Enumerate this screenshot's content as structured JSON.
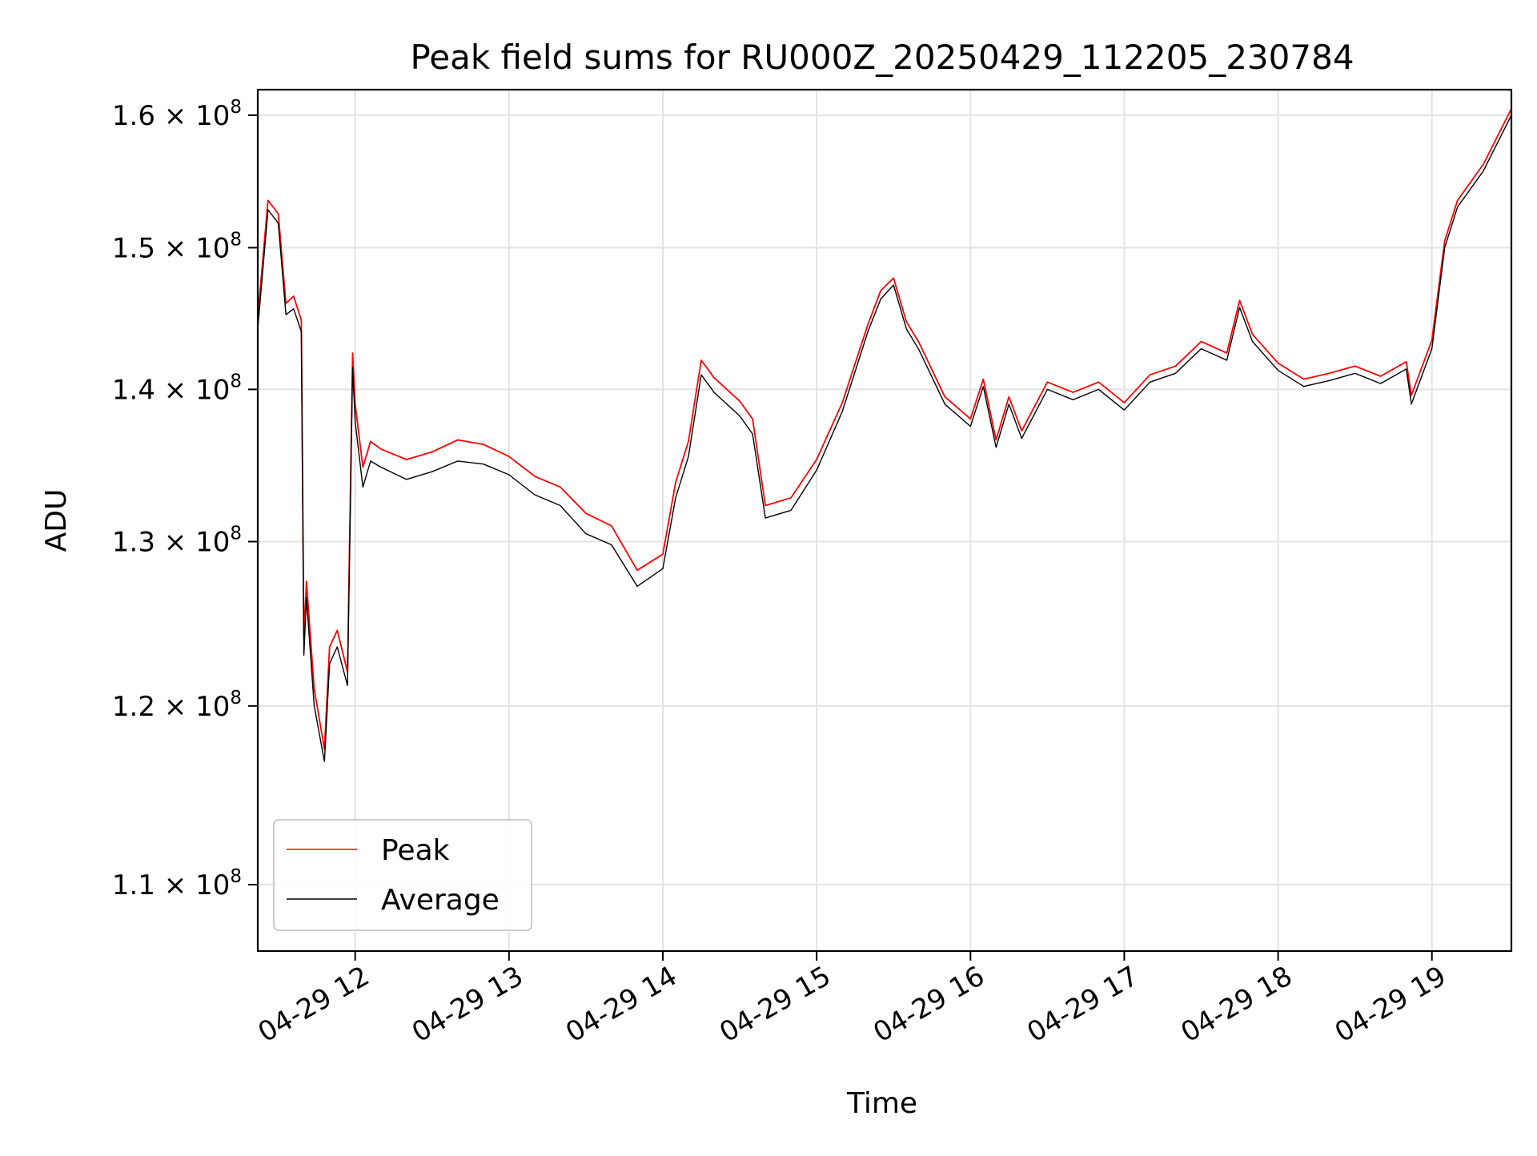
{
  "chart_data": {
    "type": "line",
    "title": "Peak field sums for RU000Z_20250429_112205_230784",
    "xlabel": "Time",
    "ylabel": "ADU",
    "y_scale": "log",
    "x_range": [
      "2025-04-29 11:22",
      "2025-04-29 19:31"
    ],
    "ylim": [
      106500000,
      162000000
    ],
    "grid": true,
    "legend_position": "lower left",
    "x_ticks": [
      {
        "t": "2025-04-29 12:00",
        "label": "04-29 12"
      },
      {
        "t": "2025-04-29 13:00",
        "label": "04-29 13"
      },
      {
        "t": "2025-04-29 14:00",
        "label": "04-29 14"
      },
      {
        "t": "2025-04-29 15:00",
        "label": "04-29 15"
      },
      {
        "t": "2025-04-29 16:00",
        "label": "04-29 16"
      },
      {
        "t": "2025-04-29 17:00",
        "label": "04-29 17"
      },
      {
        "t": "2025-04-29 18:00",
        "label": "04-29 18"
      },
      {
        "t": "2025-04-29 19:00",
        "label": "04-29 19"
      }
    ],
    "y_ticks": [
      {
        "value": 110000000,
        "mantissa": "1.1",
        "exponent": "8"
      },
      {
        "value": 120000000,
        "mantissa": "1.2",
        "exponent": "8"
      },
      {
        "value": 130000000,
        "mantissa": "1.3",
        "exponent": "8"
      },
      {
        "value": 140000000,
        "mantissa": "1.4",
        "exponent": "8"
      },
      {
        "value": 150000000,
        "mantissa": "1.5",
        "exponent": "8"
      },
      {
        "value": 160000000,
        "mantissa": "1.6",
        "exponent": "8"
      }
    ],
    "series": [
      {
        "name": "Peak",
        "color": "#ff0000",
        "x": [
          "2025-04-29 11:22",
          "2025-04-29 11:26",
          "2025-04-29 11:30",
          "2025-04-29 11:33",
          "2025-04-29 11:36",
          "2025-04-29 11:39",
          "2025-04-29 11:40",
          "2025-04-29 11:41",
          "2025-04-29 11:44",
          "2025-04-29 11:48",
          "2025-04-29 11:50",
          "2025-04-29 11:53",
          "2025-04-29 11:57",
          "2025-04-29 11:59",
          "2025-04-29 12:00",
          "2025-04-29 12:03",
          "2025-04-29 12:06",
          "2025-04-29 12:10",
          "2025-04-29 12:20",
          "2025-04-29 12:30",
          "2025-04-29 12:40",
          "2025-04-29 12:50",
          "2025-04-29 13:00",
          "2025-04-29 13:10",
          "2025-04-29 13:20",
          "2025-04-29 13:30",
          "2025-04-29 13:40",
          "2025-04-29 13:50",
          "2025-04-29 14:00",
          "2025-04-29 14:05",
          "2025-04-29 14:10",
          "2025-04-29 14:15",
          "2025-04-29 14:20",
          "2025-04-29 14:30",
          "2025-04-29 14:35",
          "2025-04-29 14:40",
          "2025-04-29 14:50",
          "2025-04-29 15:00",
          "2025-04-29 15:10",
          "2025-04-29 15:20",
          "2025-04-29 15:25",
          "2025-04-29 15:30",
          "2025-04-29 15:35",
          "2025-04-29 15:40",
          "2025-04-29 15:50",
          "2025-04-29 16:00",
          "2025-04-29 16:05",
          "2025-04-29 16:10",
          "2025-04-29 16:15",
          "2025-04-29 16:20",
          "2025-04-29 16:30",
          "2025-04-29 16:40",
          "2025-04-29 16:50",
          "2025-04-29 17:00",
          "2025-04-29 17:10",
          "2025-04-29 17:20",
          "2025-04-29 17:30",
          "2025-04-29 17:40",
          "2025-04-29 17:45",
          "2025-04-29 17:50",
          "2025-04-29 18:00",
          "2025-04-29 18:10",
          "2025-04-29 18:20",
          "2025-04-29 18:30",
          "2025-04-29 18:40",
          "2025-04-29 18:50",
          "2025-04-29 18:52",
          "2025-04-29 19:00",
          "2025-04-29 19:05",
          "2025-04-29 19:10",
          "2025-04-29 19:20",
          "2025-04-29 19:31"
        ],
        "y": [
          145000000,
          153500000,
          152500000,
          146000000,
          146500000,
          144800000,
          124000000,
          127500000,
          121000000,
          117500000,
          123500000,
          124500000,
          122000000,
          142500000,
          139000000,
          134800000,
          136500000,
          136000000,
          135300000,
          135800000,
          136600000,
          136300000,
          135500000,
          134200000,
          133500000,
          131800000,
          131000000,
          128200000,
          129200000,
          133800000,
          136500000,
          142000000,
          140800000,
          139200000,
          138000000,
          132300000,
          132800000,
          135300000,
          139100000,
          144500000,
          146900000,
          147800000,
          144700000,
          143200000,
          139500000,
          138000000,
          140700000,
          136600000,
          139500000,
          137200000,
          140500000,
          139800000,
          140500000,
          139100000,
          141000000,
          141600000,
          143300000,
          142500000,
          146200000,
          143800000,
          141800000,
          140700000,
          141100000,
          141600000,
          140900000,
          141900000,
          139600000,
          143400000,
          150500000,
          153500000,
          156200000,
          160500000
        ]
      },
      {
        "name": "Average",
        "color": "#000000",
        "x": [
          "2025-04-29 11:22",
          "2025-04-29 11:26",
          "2025-04-29 11:30",
          "2025-04-29 11:33",
          "2025-04-29 11:36",
          "2025-04-29 11:39",
          "2025-04-29 11:40",
          "2025-04-29 11:41",
          "2025-04-29 11:44",
          "2025-04-29 11:48",
          "2025-04-29 11:50",
          "2025-04-29 11:53",
          "2025-04-29 11:57",
          "2025-04-29 11:59",
          "2025-04-29 12:00",
          "2025-04-29 12:03",
          "2025-04-29 12:06",
          "2025-04-29 12:10",
          "2025-04-29 12:20",
          "2025-04-29 12:30",
          "2025-04-29 12:40",
          "2025-04-29 12:50",
          "2025-04-29 13:00",
          "2025-04-29 13:10",
          "2025-04-29 13:20",
          "2025-04-29 13:30",
          "2025-04-29 13:40",
          "2025-04-29 13:50",
          "2025-04-29 14:00",
          "2025-04-29 14:05",
          "2025-04-29 14:10",
          "2025-04-29 14:15",
          "2025-04-29 14:20",
          "2025-04-29 14:30",
          "2025-04-29 14:35",
          "2025-04-29 14:40",
          "2025-04-29 14:50",
          "2025-04-29 15:00",
          "2025-04-29 15:10",
          "2025-04-29 15:20",
          "2025-04-29 15:25",
          "2025-04-29 15:30",
          "2025-04-29 15:35",
          "2025-04-29 15:40",
          "2025-04-29 15:50",
          "2025-04-29 16:00",
          "2025-04-29 16:05",
          "2025-04-29 16:10",
          "2025-04-29 16:15",
          "2025-04-29 16:20",
          "2025-04-29 16:30",
          "2025-04-29 16:40",
          "2025-04-29 16:50",
          "2025-04-29 17:00",
          "2025-04-29 17:10",
          "2025-04-29 17:20",
          "2025-04-29 17:30",
          "2025-04-29 17:40",
          "2025-04-29 17:45",
          "2025-04-29 17:50",
          "2025-04-29 18:00",
          "2025-04-29 18:10",
          "2025-04-29 18:20",
          "2025-04-29 18:30",
          "2025-04-29 18:40",
          "2025-04-29 18:50",
          "2025-04-29 18:52",
          "2025-04-29 19:00",
          "2025-04-29 19:05",
          "2025-04-29 19:10",
          "2025-04-29 19:20",
          "2025-04-29 19:31"
        ],
        "y": [
          144200000,
          152800000,
          151800000,
          145200000,
          145600000,
          144000000,
          123000000,
          126500000,
          120000000,
          116800000,
          122500000,
          123500000,
          121200000,
          141500000,
          137800000,
          133500000,
          135200000,
          134800000,
          134000000,
          134500000,
          135200000,
          135000000,
          134300000,
          133000000,
          132300000,
          130500000,
          129800000,
          127200000,
          128300000,
          132800000,
          135500000,
          141000000,
          139800000,
          138200000,
          137000000,
          131500000,
          132000000,
          134600000,
          138500000,
          144000000,
          146300000,
          147300000,
          144200000,
          142700000,
          139000000,
          137500000,
          140200000,
          136100000,
          139000000,
          136700000,
          140000000,
          139300000,
          140000000,
          138600000,
          140500000,
          141100000,
          142800000,
          142000000,
          145700000,
          143300000,
          141300000,
          140200000,
          140600000,
          141100000,
          140400000,
          141400000,
          139000000,
          142800000,
          150000000,
          153000000,
          155700000,
          160000000
        ]
      }
    ]
  }
}
